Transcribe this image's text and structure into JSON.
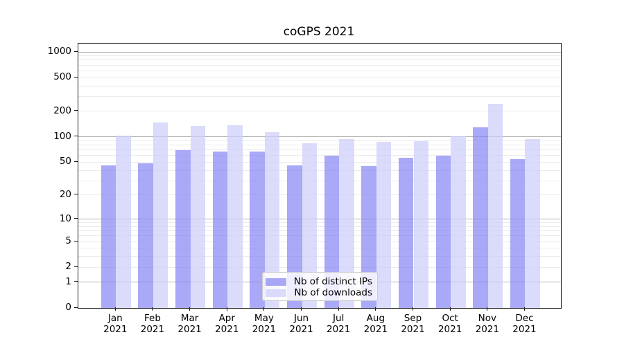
{
  "chart_data": {
    "type": "bar",
    "title": "coGPS 2021",
    "y_scale": "log10(value+1)",
    "categories": [
      "Jan",
      "Feb",
      "Mar",
      "Apr",
      "May",
      "Jun",
      "Jul",
      "Aug",
      "Sep",
      "Oct",
      "Nov",
      "Dec"
    ],
    "category_year": "2021",
    "series": [
      {
        "name": "Nb of distinct IPs",
        "color": "rgba(132,132,244,0.70)",
        "values": [
          46,
          49,
          69,
          67,
          67,
          46,
          60,
          45,
          57,
          60,
          131,
          54
        ]
      },
      {
        "name": "Nb of downloads",
        "color": "rgba(205,205,250,0.72)",
        "values": [
          103,
          148,
          134,
          137,
          114,
          84,
          94,
          88,
          89,
          102,
          245,
          94
        ]
      }
    ],
    "y_axis": {
      "tick_values": [
        1000,
        500,
        200,
        100,
        50,
        20,
        10,
        5,
        2,
        1,
        0
      ],
      "major_grid_values": [
        1,
        10,
        100,
        1000
      ],
      "minor_grid_values": [
        2,
        3,
        4,
        5,
        6,
        7,
        8,
        9,
        20,
        30,
        40,
        50,
        60,
        70,
        80,
        90,
        200,
        300,
        400,
        500,
        600,
        700,
        800,
        900
      ]
    },
    "colors": {
      "major_grid": "#b0b0b0",
      "minor_grid": "#ebebeb",
      "axis": "#1a1a1a"
    },
    "legend": {
      "position": "lower-center"
    }
  }
}
